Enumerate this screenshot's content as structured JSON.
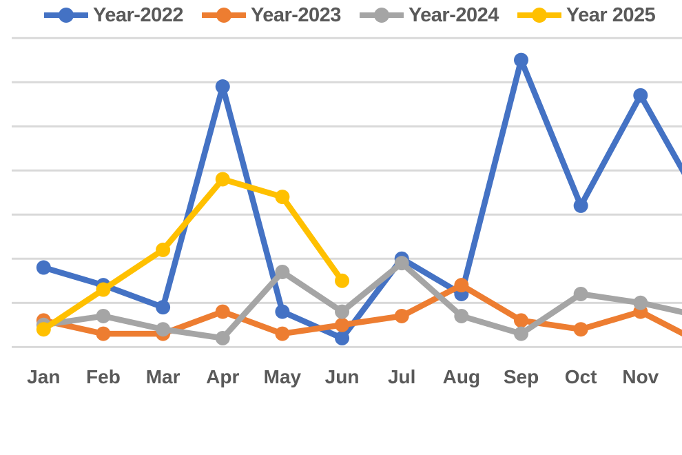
{
  "page": {
    "background_color": "#FFFFFF",
    "text_color": "#595959",
    "gridline_color": "#D9D9D9"
  },
  "chart_data": {
    "type": "line",
    "title": "",
    "legend_position": "top",
    "marker_style": "circle",
    "categories": [
      "Jan",
      "Feb",
      "Mar",
      "Apr",
      "May",
      "Jun",
      "Jul",
      "Aug",
      "Sep",
      "Oct",
      "Nov"
    ],
    "x_axis_note": "Dec category and right portion of chart clipped off right edge of screenshot",
    "y_axis_labels_visible": false,
    "ylim": [
      0,
      70
    ],
    "gridline_step": 10,
    "gridline_count": 8,
    "grid_on": true,
    "series": [
      {
        "name": "Year-2022",
        "color": "#4472C4",
        "values": [
          18,
          14,
          9,
          59,
          8,
          2,
          20,
          12,
          65,
          32,
          57
        ],
        "clipped_dec_estimate": 33
      },
      {
        "name": "Year-2023",
        "color": "#ED7D31",
        "values": [
          6,
          3,
          3,
          8,
          3,
          5,
          7,
          14,
          6,
          4,
          8
        ],
        "clipped_dec_estimate": 1
      },
      {
        "name": "Year-2024",
        "color": "#A5A5A5",
        "values": [
          5,
          7,
          4,
          2,
          17,
          8,
          19,
          7,
          3,
          12,
          10
        ],
        "clipped_dec_estimate": 7
      },
      {
        "name": "Year 2025",
        "color": "#FFC000",
        "values": [
          4,
          13,
          22,
          38,
          34,
          15,
          null,
          null,
          null,
          null,
          null
        ],
        "clipped_dec_estimate": null
      }
    ]
  }
}
